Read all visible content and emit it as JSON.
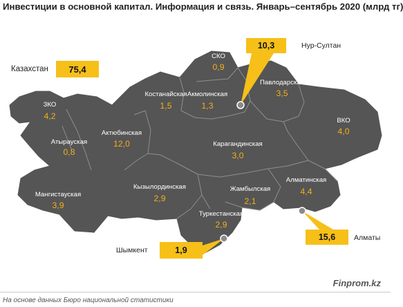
{
  "title": "Инвестиции в основной капитал. Информация и связь. Январь–сентябрь 2020 (млрд тг)",
  "total": {
    "label": "Казахстан",
    "value": "75,4"
  },
  "regions": [
    {
      "id": "zko",
      "name": "ЗКО",
      "value": "4,2"
    },
    {
      "id": "atyrau",
      "name": "Атырауская",
      "value": "0,8"
    },
    {
      "id": "mangystau",
      "name": "Мангистауская",
      "value": "3,9"
    },
    {
      "id": "aktobe",
      "name": "Актюбинская",
      "value": "12,0"
    },
    {
      "id": "kostanay",
      "name": "Костанайская",
      "value": "1,5"
    },
    {
      "id": "sko",
      "name": "СКО",
      "value": "0,9"
    },
    {
      "id": "akmola",
      "name": "Акмолинская",
      "value": "1,3"
    },
    {
      "id": "pavlodar",
      "name": "Павлодарская",
      "value": "3,5"
    },
    {
      "id": "vko",
      "name": "ВКО",
      "value": "4,0"
    },
    {
      "id": "karaganda",
      "name": "Карагандинская",
      "value": "3,0"
    },
    {
      "id": "kyzylorda",
      "name": "Кызылординская",
      "value": "2,9"
    },
    {
      "id": "zhambyl",
      "name": "Жамбылская",
      "value": "2,1"
    },
    {
      "id": "almaty-region",
      "name": "Алматинская",
      "value": "4,4"
    },
    {
      "id": "turkestan",
      "name": "Туркестанская",
      "value": "2,9"
    }
  ],
  "cities": [
    {
      "id": "nur-sultan",
      "name": "Нур-Султан",
      "value": "10,3"
    },
    {
      "id": "almaty",
      "name": "Алматы",
      "value": "15,6"
    },
    {
      "id": "shymkent",
      "name": "Шымкент",
      "value": "1,9"
    }
  ],
  "brand": "Finprom.kz",
  "source": "На основе данных Бюро национальной статистики",
  "colors": {
    "map_fill": "#555555",
    "border": "#8f8f8f",
    "value": "#f2b019",
    "callout": "#f6c019"
  }
}
